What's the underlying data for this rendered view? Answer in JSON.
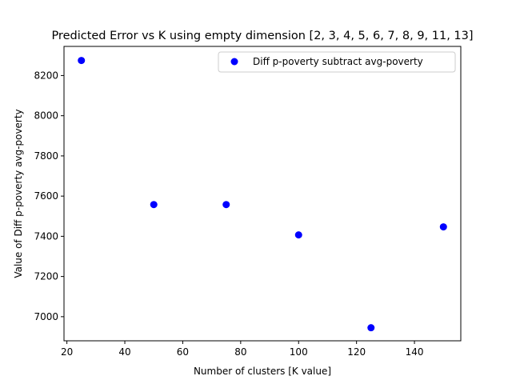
{
  "chart_data": {
    "type": "scatter",
    "title": "Predicted Error vs K using empty dimension [2, 3, 4, 5, 6, 7, 8, 9, 11, 13]",
    "xlabel": "Number of clusters [K value]",
    "ylabel": "Value of Diff p-poverty avg-poverty",
    "xlim": [
      19,
      156
    ],
    "ylim": [
      6880,
      8345
    ],
    "xticks": [
      20,
      40,
      60,
      80,
      100,
      120,
      140
    ],
    "yticks": [
      7000,
      7200,
      7400,
      7600,
      7800,
      8000,
      8200
    ],
    "grid": false,
    "legend_position": "top-right",
    "series": [
      {
        "name": "Diff p-poverty subtract avg-poverty",
        "color": "#0000ff",
        "marker": "circle",
        "x": [
          25,
          50,
          75,
          100,
          125,
          150
        ],
        "y": [
          8275,
          7558,
          7558,
          7407,
          6945,
          7447
        ]
      }
    ]
  }
}
